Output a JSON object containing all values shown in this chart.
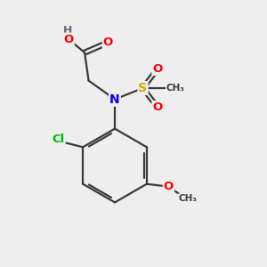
{
  "background_color": "#eeeeee",
  "bond_color": "#3a3a3a",
  "atom_colors": {
    "O": "#ff0000",
    "N": "#0000ff",
    "S": "#ccaa00",
    "Cl": "#00bb00",
    "H": "#666677",
    "C": "#3a3a3a"
  },
  "figsize": [
    3.0,
    3.0
  ],
  "dpi": 100
}
